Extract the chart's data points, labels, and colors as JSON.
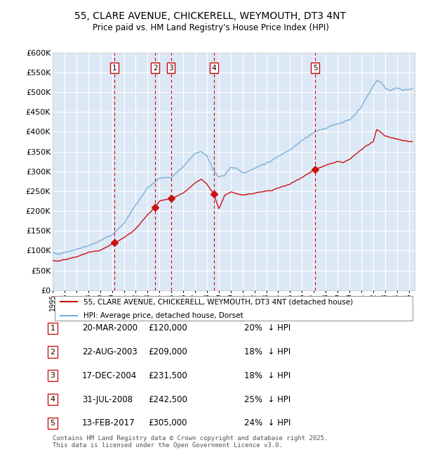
{
  "title": "55, CLARE AVENUE, CHICKERELL, WEYMOUTH, DT3 4NT",
  "subtitle": "Price paid vs. HM Land Registry's House Price Index (HPI)",
  "ylim": [
    0,
    600000
  ],
  "yticks": [
    0,
    50000,
    100000,
    150000,
    200000,
    250000,
    300000,
    350000,
    400000,
    450000,
    500000,
    550000,
    600000
  ],
  "ytick_labels": [
    "£0",
    "£50K",
    "£100K",
    "£150K",
    "£200K",
    "£250K",
    "£300K",
    "£350K",
    "£400K",
    "£450K",
    "£500K",
    "£550K",
    "£600K"
  ],
  "xlim_start": 1995.0,
  "xlim_end": 2025.5,
  "plot_bg_color": "#dce8f5",
  "grid_color": "#ffffff",
  "hpi_color": "#7ab0d9",
  "price_color": "#cc1111",
  "transaction_color": "#cc0000",
  "transactions": [
    {
      "num": 1,
      "year": 2000.22,
      "price": 120000,
      "date": "20-MAR-2000",
      "pct": "20%",
      "dir": "↓"
    },
    {
      "num": 2,
      "year": 2003.64,
      "price": 209000,
      "date": "22-AUG-2003",
      "pct": "18%",
      "dir": "↓"
    },
    {
      "num": 3,
      "year": 2004.96,
      "price": 231500,
      "date": "17-DEC-2004",
      "pct": "18%",
      "dir": "↓"
    },
    {
      "num": 4,
      "year": 2008.58,
      "price": 242500,
      "date": "31-JUL-2008",
      "pct": "25%",
      "dir": "↓"
    },
    {
      "num": 5,
      "year": 2017.12,
      "price": 305000,
      "date": "13-FEB-2017",
      "pct": "24%",
      "dir": "↓"
    }
  ],
  "legend_house_label": "55, CLARE AVENUE, CHICKERELL, WEYMOUTH, DT3 4NT (detached house)",
  "legend_hpi_label": "HPI: Average price, detached house, Dorset",
  "footer": "Contains HM Land Registry data © Crown copyright and database right 2025.\nThis data is licensed under the Open Government Licence v3.0."
}
